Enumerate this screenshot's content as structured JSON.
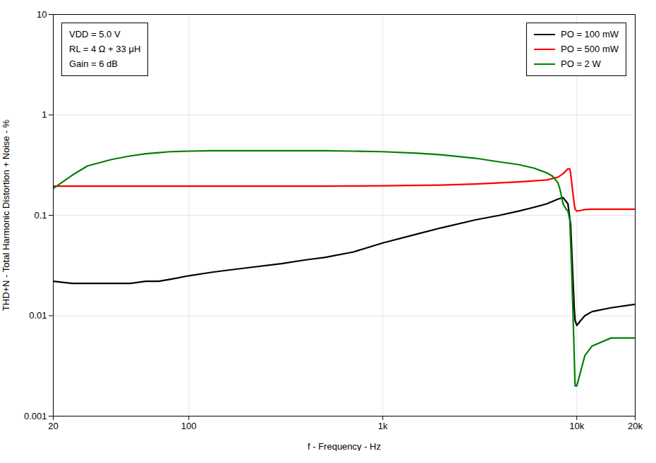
{
  "chart_data": {
    "type": "line",
    "title": "",
    "xlabel": "f - Frequency - Hz",
    "ylabel": "THD+N - Total Harmonic Distortion + Noise - %",
    "annotations": [
      "VDD = 5.0 V",
      "RL = 4 Ω + 33 μH",
      "Gain = 6 dB"
    ],
    "log": true,
    "grid": true,
    "legend": "upper right",
    "xlim": [
      20,
      20000
    ],
    "ylim": [
      0.001,
      10
    ],
    "xticks": [
      20,
      100,
      {
        "value": 1000,
        "label": "1k"
      },
      {
        "value": 10000,
        "label": "10k"
      },
      {
        "value": 20000,
        "label": "20k"
      }
    ],
    "yticks": [
      0.001,
      0.01,
      0.1,
      1,
      10
    ],
    "series": [
      {
        "name": "PO = 100 mW",
        "color": "black",
        "x": [
          20,
          25,
          30,
          35,
          40,
          50,
          60,
          70,
          80,
          100,
          130,
          150,
          200,
          300,
          400,
          500,
          700,
          1000,
          1500,
          2000,
          3000,
          4000,
          5000,
          6000,
          7000,
          8000,
          8500,
          9000,
          9300,
          9500,
          9700,
          9800,
          10000,
          10500,
          11000,
          12000,
          15000,
          20000
        ],
        "values": [
          0.022,
          0.021,
          0.021,
          0.021,
          0.021,
          0.021,
          0.022,
          0.022,
          0.023,
          0.025,
          0.027,
          0.028,
          0.03,
          0.033,
          0.036,
          0.038,
          0.043,
          0.053,
          0.065,
          0.075,
          0.09,
          0.1,
          0.11,
          0.12,
          0.13,
          0.145,
          0.15,
          0.13,
          0.08,
          0.03,
          0.012,
          0.009,
          0.008,
          0.009,
          0.01,
          0.011,
          0.012,
          0.013
        ]
      },
      {
        "name": "PO = 500 mW",
        "color": "red",
        "x": [
          20,
          25,
          30,
          40,
          50,
          70,
          100,
          200,
          300,
          500,
          700,
          1000,
          2000,
          3000,
          5000,
          7000,
          8000,
          8500,
          9000,
          9200,
          9300,
          9500,
          9700,
          9800,
          10000,
          10500,
          11000,
          12000,
          15000,
          20000
        ],
        "values": [
          0.195,
          0.195,
          0.195,
          0.195,
          0.195,
          0.195,
          0.195,
          0.195,
          0.195,
          0.195,
          0.196,
          0.197,
          0.2,
          0.205,
          0.215,
          0.225,
          0.24,
          0.26,
          0.29,
          0.29,
          0.26,
          0.18,
          0.13,
          0.115,
          0.11,
          0.112,
          0.114,
          0.115,
          0.115,
          0.115
        ]
      },
      {
        "name": "PO = 2 W",
        "color": "green",
        "x": [
          20,
          25,
          30,
          40,
          50,
          60,
          70,
          80,
          100,
          130,
          150,
          200,
          300,
          400,
          500,
          700,
          1000,
          1500,
          2000,
          3000,
          4000,
          5000,
          6000,
          7000,
          7500,
          8000,
          8200,
          8500,
          8700,
          8800,
          9000,
          9200,
          9400,
          9600,
          9700,
          9800,
          10000,
          11000,
          12000,
          15000,
          20000
        ],
        "values": [
          0.185,
          0.25,
          0.31,
          0.36,
          0.39,
          0.41,
          0.42,
          0.43,
          0.435,
          0.44,
          0.44,
          0.44,
          0.44,
          0.44,
          0.44,
          0.435,
          0.43,
          0.415,
          0.4,
          0.37,
          0.34,
          0.32,
          0.295,
          0.265,
          0.245,
          0.21,
          0.18,
          0.13,
          0.12,
          0.115,
          0.11,
          0.09,
          0.03,
          0.008,
          0.004,
          0.002,
          0.002,
          0.004,
          0.005,
          0.006,
          0.006
        ]
      }
    ]
  }
}
